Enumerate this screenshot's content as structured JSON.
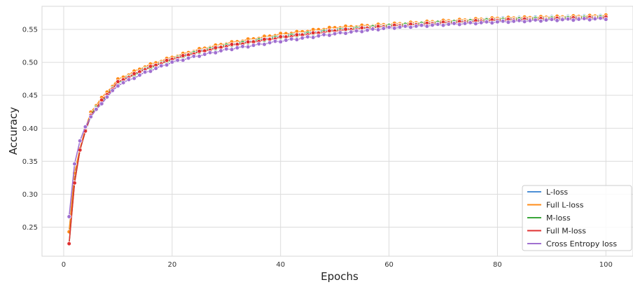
{
  "chart_data": {
    "type": "line",
    "xlabel": "Epochs",
    "ylabel": "Accuracy",
    "xlim": [
      -4,
      105
    ],
    "ylim": [
      0.206,
      0.585
    ],
    "xticks": [
      0,
      20,
      40,
      60,
      80,
      100
    ],
    "yticks": [
      0.25,
      0.3,
      0.35,
      0.4,
      0.45,
      0.5,
      0.55
    ],
    "xtick_labels": [
      "0",
      "20",
      "40",
      "60",
      "80",
      "100"
    ],
    "ytick_labels": [
      "0.25",
      "0.30",
      "0.35",
      "0.40",
      "0.45",
      "0.50",
      "0.55"
    ],
    "grid": true,
    "legend_position": "bottom-right",
    "markers": true,
    "x": [
      1,
      2,
      3,
      4,
      5,
      7,
      10,
      15,
      20,
      25,
      30,
      40,
      50,
      60,
      70,
      80,
      90,
      100
    ],
    "series": [
      {
        "name": "L-loss",
        "color": "#4c8fd6",
        "values": [
          0.243,
          0.33,
          0.368,
          0.396,
          0.418,
          0.442,
          0.47,
          0.491,
          0.506,
          0.518,
          0.526,
          0.54,
          0.55,
          0.556,
          0.561,
          0.566,
          0.568,
          0.57
        ]
      },
      {
        "name": "Full L-loss",
        "color": "#ff8c1a",
        "values": [
          0.243,
          0.332,
          0.369,
          0.398,
          0.425,
          0.446,
          0.474,
          0.494,
          0.508,
          0.52,
          0.529,
          0.543,
          0.553,
          0.558,
          0.563,
          0.567,
          0.569,
          0.571
        ]
      },
      {
        "name": "M-loss",
        "color": "#3aa63a",
        "values": [
          0.225,
          0.318,
          0.367,
          0.396,
          0.42,
          0.441,
          0.469,
          0.489,
          0.504,
          0.516,
          0.525,
          0.538,
          0.548,
          0.555,
          0.56,
          0.564,
          0.566,
          0.568
        ]
      },
      {
        "name": "Full M-loss",
        "color": "#e03030",
        "values": [
          0.225,
          0.317,
          0.367,
          0.395,
          0.42,
          0.442,
          0.47,
          0.49,
          0.505,
          0.516,
          0.525,
          0.538,
          0.548,
          0.555,
          0.56,
          0.564,
          0.566,
          0.568
        ]
      },
      {
        "name": "Cross Entropy loss",
        "color": "#a070d0",
        "values": [
          0.266,
          0.346,
          0.381,
          0.403,
          0.417,
          0.438,
          0.465,
          0.484,
          0.5,
          0.51,
          0.519,
          0.532,
          0.543,
          0.552,
          0.557,
          0.561,
          0.564,
          0.566
        ]
      }
    ]
  }
}
